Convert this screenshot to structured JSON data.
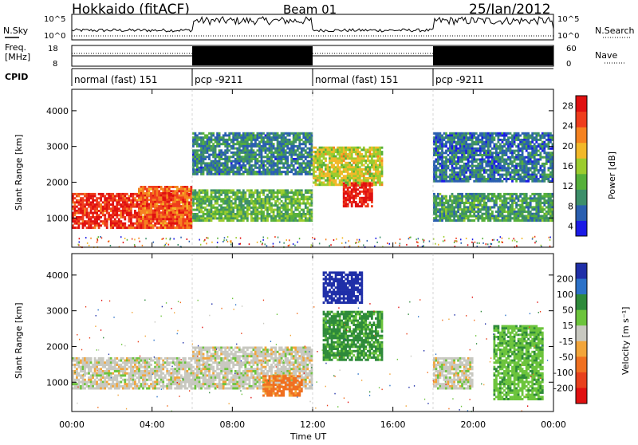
{
  "header": {
    "station": "Hokkaido (fitACF)",
    "beam": "Beam 01",
    "date": "25/Jan/2012"
  },
  "strip_labels": {
    "nsky": "N.Sky",
    "nsearch": "N.Search",
    "freq_top": "Freq.",
    "freq_unit": "[MHz]",
    "nave": "Nave",
    "cpid": "CPID",
    "nsky_ticks": [
      "10^5",
      "10^0"
    ],
    "nsearch_ticks": [
      "10^5",
      "10^0"
    ],
    "freq_ticks": [
      "18",
      "8"
    ],
    "nave_ticks": [
      "60",
      "0"
    ]
  },
  "cpid_segments": [
    {
      "start": 0,
      "end": 6,
      "label": "normal (fast) 151"
    },
    {
      "start": 6,
      "end": 12,
      "label": "pcp -9211"
    },
    {
      "start": 12,
      "end": 18,
      "label": "normal (fast) 151"
    },
    {
      "start": 18,
      "end": 24,
      "label": "pcp -9211"
    }
  ],
  "chart_data": [
    {
      "type": "heatmap",
      "title": "Power",
      "xlabel": "Time UT",
      "ylabel": "Slant Range [km]",
      "xlim": [
        0,
        24
      ],
      "ylim": [
        180,
        4600
      ],
      "x_ticks": [
        "00:00",
        "04:00",
        "08:00",
        "12:00",
        "16:00",
        "20:00",
        "00:00"
      ],
      "y_ticks": [
        1000,
        2000,
        3000,
        4000
      ],
      "colorbar_label": "Power [dB]",
      "colorbar_ticks": [
        4,
        8,
        12,
        16,
        20,
        24,
        28
      ],
      "colorbar_colors": [
        "#1a1ae6",
        "#2a5fb0",
        "#3d8f6a",
        "#56b03a",
        "#9ccc2e",
        "#f2b829",
        "#f58220",
        "#ef3d1c",
        "#e01010"
      ],
      "regions": [
        {
          "t0": 0.0,
          "t1": 6.0,
          "r0": 700,
          "r1": 1700,
          "power": 27
        },
        {
          "t0": 3.3,
          "t1": 6.0,
          "r0": 700,
          "r1": 1900,
          "power": 24
        },
        {
          "t0": 6.0,
          "t1": 12.0,
          "r0": 900,
          "r1": 1800,
          "power": 13
        },
        {
          "t0": 6.0,
          "t1": 12.0,
          "r0": 2200,
          "r1": 3400,
          "power": 9
        },
        {
          "t0": 12.0,
          "t1": 15.5,
          "r0": 1900,
          "r1": 3000,
          "power": 17
        },
        {
          "t0": 13.5,
          "t1": 15.0,
          "r0": 1300,
          "r1": 2000,
          "power": 28
        },
        {
          "t0": 18.0,
          "t1": 24.0,
          "r0": 900,
          "r1": 1700,
          "power": 11
        },
        {
          "t0": 18.0,
          "t1": 24.0,
          "r0": 2000,
          "r1": 3400,
          "power": 8
        }
      ]
    },
    {
      "type": "heatmap",
      "title": "Velocity",
      "xlabel": "Time UT",
      "ylabel": "Slant Range [km]",
      "xlim": [
        0,
        24
      ],
      "ylim": [
        180,
        4600
      ],
      "x_ticks": [
        "00:00",
        "04:00",
        "08:00",
        "12:00",
        "16:00",
        "20:00",
        "00:00"
      ],
      "y_ticks": [
        1000,
        2000,
        3000,
        4000
      ],
      "colorbar_label": "Velocity [m s^-1]",
      "colorbar_ticks": [
        200,
        100,
        50,
        15,
        -15,
        -50,
        -100,
        -200
      ],
      "colorbar_colors": [
        "#1f2fa8",
        "#2c72c8",
        "#2e8a3a",
        "#6cc43c",
        "#c8c8c0",
        "#f2a53a",
        "#f07020",
        "#e8401c",
        "#e01010"
      ],
      "regions": [
        {
          "t0": 0.0,
          "t1": 6.0,
          "r0": 800,
          "r1": 1700,
          "velocity": 0
        },
        {
          "t0": 6.0,
          "t1": 12.0,
          "r0": 800,
          "r1": 2000,
          "velocity": 0
        },
        {
          "t0": 9.5,
          "t1": 11.5,
          "r0": 600,
          "r1": 1200,
          "velocity": -60
        },
        {
          "t0": 12.5,
          "t1": 14.5,
          "r0": 3200,
          "r1": 4100,
          "velocity": 180
        },
        {
          "t0": 12.5,
          "t1": 15.5,
          "r0": 1600,
          "r1": 3000,
          "velocity": 60
        },
        {
          "t0": 18.0,
          "t1": 20.0,
          "r0": 800,
          "r1": 1700,
          "velocity": 0
        },
        {
          "t0": 21.0,
          "t1": 23.5,
          "r0": 500,
          "r1": 2600,
          "velocity": 40
        }
      ]
    }
  ],
  "axis_labels": {
    "x_title": "Time UT",
    "y_title": "Slant Range [km]",
    "power_cb": "Power [dB]",
    "velocity_cb": "Velocity [m s⁻¹]"
  }
}
